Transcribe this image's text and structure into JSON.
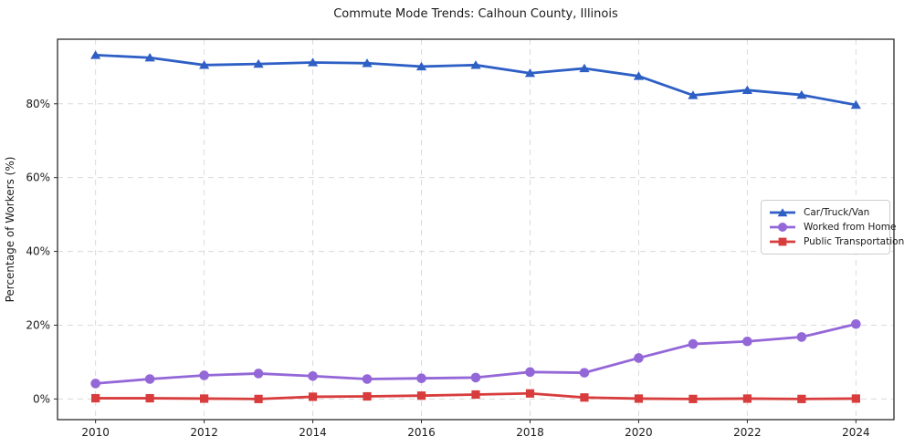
{
  "chart_data": {
    "type": "line",
    "title": "Commute Mode Trends: Calhoun County, Illinois",
    "ylabel": "Percentage of Workers (%)",
    "xlabel": "",
    "x": [
      2010,
      2011,
      2012,
      2013,
      2014,
      2015,
      2016,
      2017,
      2018,
      2019,
      2020,
      2021,
      2022,
      2023,
      2024
    ],
    "series": [
      {
        "name": "Car/Truck/Van",
        "color": "#2e5fc5",
        "marker": "triangle",
        "values": [
          93.2,
          92.5,
          90.5,
          90.8,
          91.2,
          91.0,
          90.1,
          90.5,
          88.3,
          89.6,
          87.5,
          82.3,
          83.7,
          82.4,
          79.7
        ]
      },
      {
        "name": "Worked from Home",
        "color": "#9467d8",
        "marker": "circle",
        "values": [
          4.2,
          5.4,
          6.4,
          6.9,
          6.2,
          5.4,
          5.6,
          5.8,
          7.3,
          7.1,
          11.1,
          14.9,
          15.6,
          16.8,
          20.3
        ]
      },
      {
        "name": "Public Transportation",
        "color": "#d83c3c",
        "marker": "square",
        "values": [
          0.2,
          0.2,
          0.1,
          0.0,
          0.6,
          0.7,
          0.9,
          1.2,
          1.5,
          0.4,
          0.1,
          0.0,
          0.1,
          0.0,
          0.1
        ]
      }
    ],
    "xticks": [
      2010,
      2012,
      2014,
      2016,
      2018,
      2020,
      2022,
      2024
    ],
    "yticks": [
      0,
      20,
      40,
      60,
      80
    ],
    "ytick_suffix": "%",
    "xlim": [
      2009.3,
      2024.7
    ],
    "ylim": [
      -5.6,
      97.5
    ],
    "grid": true,
    "grid_style": "dashed",
    "legend_position": "center right"
  },
  "colors": {
    "grid": "#dadada",
    "frame": "#2b2b2b",
    "tick_text": "#1a1a1a",
    "background": "#ffffff",
    "legend_border": "#cccccc"
  }
}
